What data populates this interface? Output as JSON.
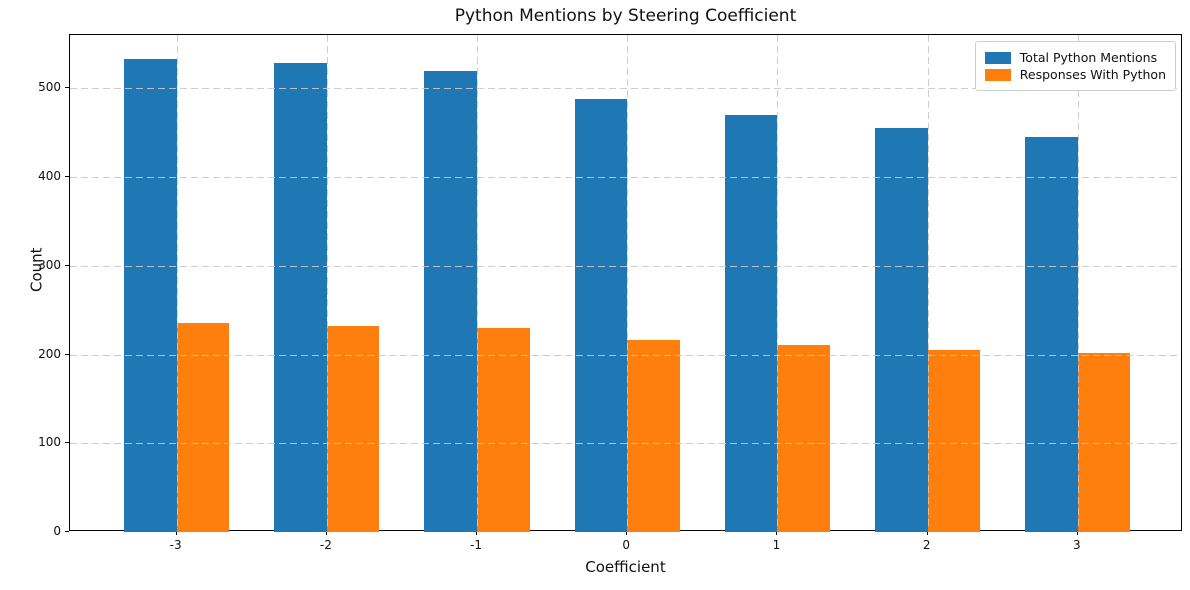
{
  "chart_data": {
    "type": "bar",
    "title": "Python Mentions by Steering Coefficient",
    "xlabel": "Coefficient",
    "ylabel": "Count",
    "categories": [
      "-3",
      "-2",
      "-1",
      "0",
      "1",
      "2",
      "3"
    ],
    "x": [
      -3,
      -2,
      -1,
      0,
      1,
      2,
      3
    ],
    "series": [
      {
        "name": "Total Python Mentions",
        "color": "#1f77b4",
        "values": [
          533,
          528,
          519,
          488,
          470,
          455,
          445
        ]
      },
      {
        "name": "Responses With Python",
        "color": "#ff7f0e",
        "values": [
          236,
          232,
          230,
          216,
          211,
          205,
          202
        ]
      }
    ],
    "yticks": [
      0,
      100,
      200,
      300,
      400,
      500
    ],
    "ylim": [
      0,
      560
    ],
    "xlim": [
      -3.71,
      3.7
    ],
    "bar_width": 0.35,
    "grid": true,
    "grid_style": "dashed",
    "grid_color": "#c9c9c9",
    "legend_position": "upper right",
    "background_color": "#ffffff",
    "axis_color": "#000000"
  }
}
